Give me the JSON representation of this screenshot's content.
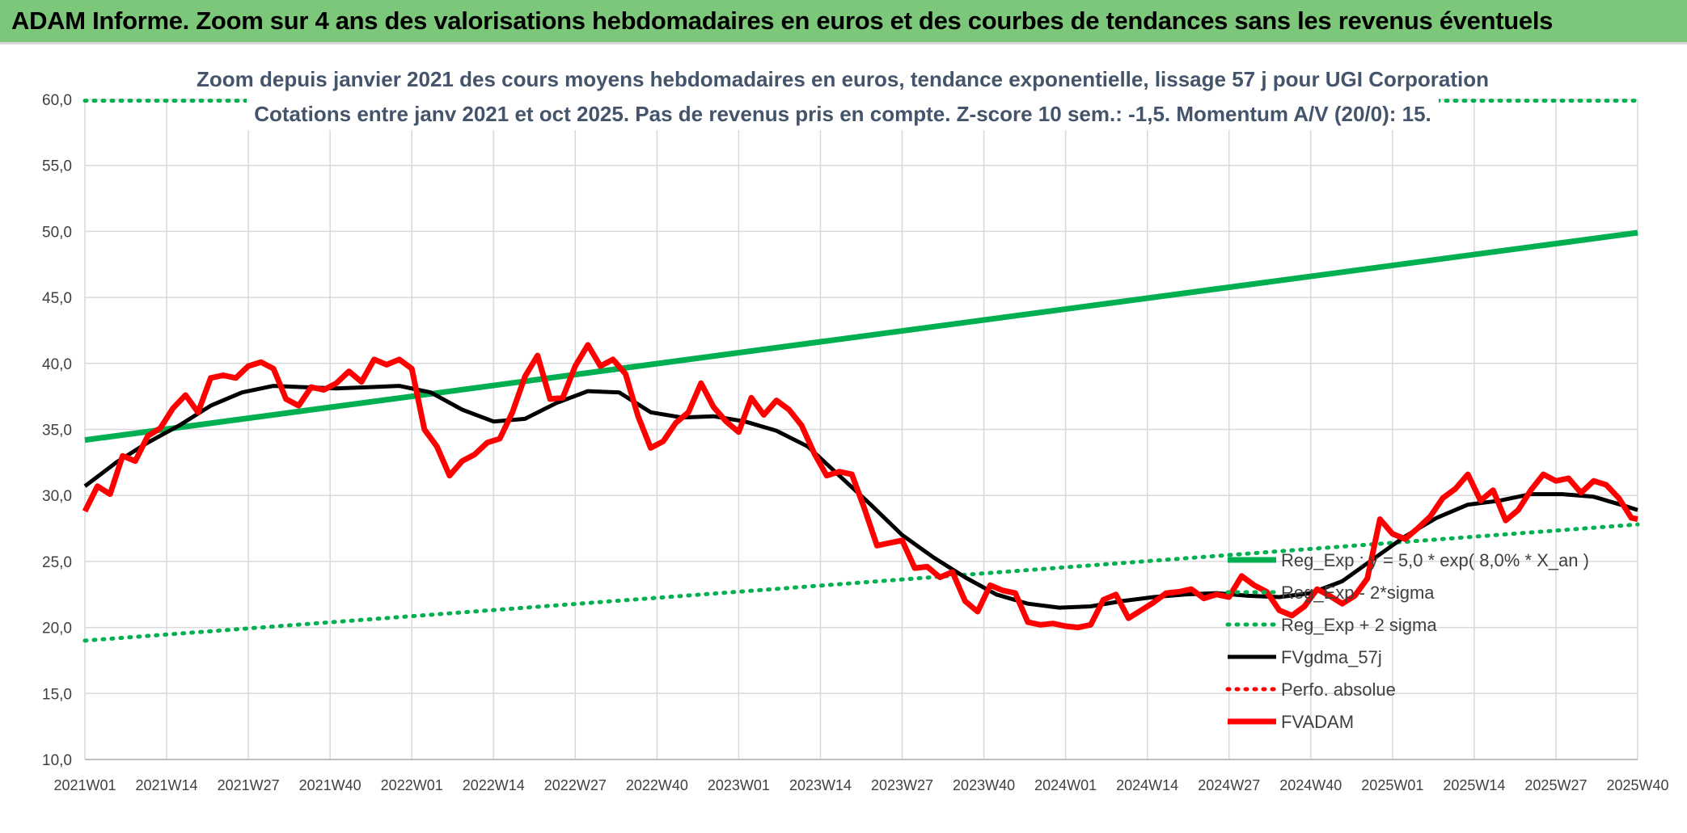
{
  "banner": {
    "title": "ADAM Informe. Zoom sur 4 ans des valorisations hebdomadaires en euros et des courbes de tendances sans les revenus éventuels"
  },
  "chart_data": {
    "type": "line",
    "title_line1": "Zoom depuis janvier 2021 des cours moyens hebdomadaires en euros, tendance exponentielle, lissage 57 j pour UGI Corporation",
    "title_line2": "Cotations entre janv 2021 et oct 2025. Pas de revenus pris en compte. Z-score 10 sem.: -1,5. Momentum A/V (20/0): 15.",
    "ylim": [
      10,
      60
    ],
    "y_ticks": [
      "10,0",
      "15,0",
      "20,0",
      "25,0",
      "30,0",
      "35,0",
      "40,0",
      "45,0",
      "50,0",
      "55,0",
      "60,0"
    ],
    "x_tick_labels": [
      "2021W01",
      "2021W14",
      "2021W27",
      "2021W40",
      "2022W01",
      "2022W14",
      "2022W27",
      "2022W40",
      "2023W01",
      "2023W14",
      "2023W27",
      "2023W40",
      "2024W01",
      "2024W14",
      "2024W27",
      "2024W40",
      "2025W01",
      "2025W14",
      "2025W27",
      "2025W40"
    ],
    "x_week_range": [
      0,
      247
    ],
    "grid": true,
    "legend_position": "bottom-right",
    "colors": {
      "reg": "#00b050",
      "band": "#00b050",
      "smooth": "#000000",
      "perf": "#ff0000",
      "price": "#ff0000",
      "grid": "#d9d9d9"
    },
    "series": [
      {
        "name": "Reg_Exp : y = 5,0 * exp( 8,0% *  X_an )",
        "style": "solid-green-thick",
        "x": [
          0,
          247
        ],
        "y": [
          34.2,
          49.9
        ]
      },
      {
        "name": "Reg_Exp - 2*sigma",
        "style": "dotted-green",
        "x": [
          0,
          247
        ],
        "y": [
          19.0,
          27.8
        ]
      },
      {
        "name": "Reg_Exp + 2 sigma",
        "style": "dotted-green",
        "x": [
          0,
          247
        ],
        "y": [
          59.9,
          59.9
        ]
      },
      {
        "name": "FVgdma_57j",
        "style": "solid-black",
        "x": [
          0,
          5,
          10,
          15,
          20,
          25,
          30,
          35,
          40,
          45,
          50,
          55,
          60,
          65,
          70,
          75,
          80,
          85,
          90,
          95,
          100,
          105,
          110,
          115,
          120,
          125,
          130,
          135,
          140,
          145,
          150,
          155,
          160,
          165,
          170,
          175,
          180,
          185,
          190,
          195,
          200,
          205,
          210,
          215,
          220,
          225,
          230,
          235,
          240,
          245,
          247
        ],
        "y": [
          30.7,
          32.5,
          34.0,
          35.3,
          36.8,
          37.8,
          38.3,
          38.2,
          38.1,
          38.2,
          38.3,
          37.8,
          36.5,
          35.6,
          35.8,
          37.0,
          37.9,
          37.8,
          36.3,
          35.9,
          36.0,
          35.6,
          34.9,
          33.7,
          31.5,
          29.3,
          27.0,
          25.3,
          23.8,
          22.5,
          21.8,
          21.5,
          21.6,
          22.0,
          22.3,
          22.5,
          22.6,
          22.4,
          22.3,
          22.6,
          23.5,
          25.2,
          26.9,
          28.3,
          29.3,
          29.6,
          30.1,
          30.1,
          29.9,
          29.2,
          28.9
        ]
      },
      {
        "name": "Perfo. absolue",
        "style": "dotted-red",
        "x": [],
        "y": []
      },
      {
        "name": "FVADAM",
        "style": "solid-red-thick",
        "x": [
          0,
          2,
          4,
          6,
          8,
          10,
          12,
          14,
          16,
          18,
          20,
          22,
          24,
          26,
          28,
          30,
          32,
          34,
          36,
          38,
          40,
          42,
          44,
          46,
          48,
          50,
          52,
          54,
          56,
          58,
          60,
          62,
          64,
          66,
          68,
          70,
          72,
          74,
          76,
          78,
          80,
          82,
          84,
          86,
          88,
          90,
          92,
          94,
          96,
          98,
          100,
          102,
          104,
          106,
          108,
          110,
          112,
          114,
          116,
          118,
          120,
          122,
          124,
          126,
          128,
          130,
          132,
          134,
          136,
          138,
          140,
          142,
          144,
          146,
          148,
          150,
          152,
          154,
          156,
          158,
          160,
          162,
          164,
          166,
          168,
          170,
          172,
          174,
          176,
          178,
          180,
          182,
          184,
          186,
          188,
          190,
          192,
          194,
          196,
          198,
          200,
          202,
          204,
          206,
          208,
          210,
          212,
          214,
          216,
          218,
          220,
          222,
          224,
          226,
          228,
          230,
          232,
          234,
          236,
          238,
          240,
          242,
          244,
          246,
          247
        ],
        "y": [
          28.8,
          30.7,
          30.1,
          33.0,
          32.6,
          34.5,
          35.1,
          36.6,
          37.6,
          36.3,
          38.9,
          39.1,
          38.9,
          39.8,
          40.1,
          39.6,
          37.3,
          36.8,
          38.2,
          38.0,
          38.5,
          39.4,
          38.6,
          40.3,
          39.9,
          40.3,
          39.6,
          35.0,
          33.7,
          31.5,
          32.6,
          33.1,
          34.0,
          34.3,
          36.3,
          39.0,
          40.6,
          37.3,
          37.4,
          39.8,
          41.4,
          39.8,
          40.3,
          39.2,
          36.0,
          33.6,
          34.1,
          35.5,
          36.3,
          38.5,
          36.7,
          35.6,
          34.8,
          37.4,
          36.1,
          37.2,
          36.5,
          35.3,
          33.2,
          31.5,
          31.8,
          31.6,
          29.0,
          26.2,
          26.4,
          26.6,
          24.5,
          24.6,
          23.8,
          24.2,
          22.0,
          21.2,
          23.2,
          22.8,
          22.6,
          20.4,
          20.2,
          20.3,
          20.1,
          20.0,
          20.2,
          22.1,
          22.5,
          20.7,
          21.3,
          21.9,
          22.6,
          22.7,
          22.9,
          22.2,
          22.5,
          22.3,
          23.9,
          23.2,
          22.7,
          21.3,
          20.9,
          21.6,
          22.9,
          22.4,
          21.8,
          22.4,
          23.7,
          28.2,
          27.1,
          26.7,
          27.5,
          28.4,
          29.8,
          30.5,
          31.6,
          29.6,
          30.4,
          28.1,
          28.9,
          30.4,
          31.6,
          31.1,
          31.3,
          30.2,
          31.1,
          30.8,
          29.8,
          28.3,
          28.2
        ]
      }
    ]
  }
}
